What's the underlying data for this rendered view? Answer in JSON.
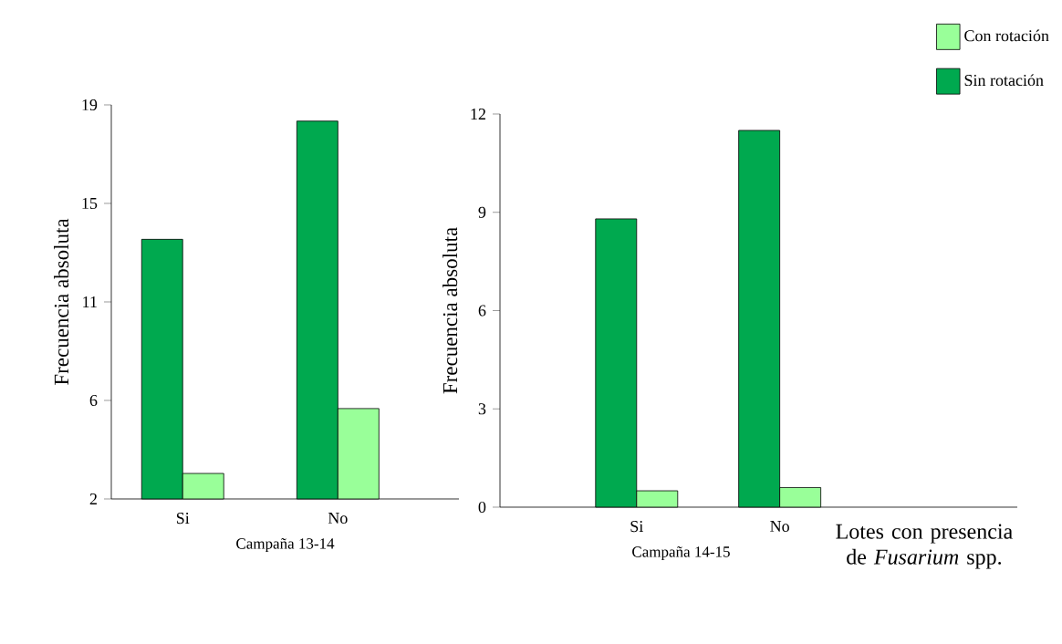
{
  "chart_data": [
    {
      "type": "bar",
      "xlabel": "Campaña 13-14",
      "ylabel": "Frecuencia absoluta",
      "categories": [
        "Si",
        "No"
      ],
      "ylim": [
        2,
        19
      ],
      "yticks": [
        2,
        {
          "value": 6.25,
          "label": "6"
        },
        {
          "value": 10.5,
          "label": "11"
        },
        {
          "value": 14.75,
          "label": "15"
        },
        19
      ],
      "series": [
        {
          "color": "#00a94f",
          "values": [
            13.2,
            18.3
          ]
        },
        {
          "color": "#99ff99",
          "values": [
            3.1,
            5.9
          ]
        }
      ]
    },
    {
      "type": "bar",
      "xlabel": "Campaña 14-15",
      "ylabel": "Frecuencia absoluta",
      "categories": [
        "Si",
        "No"
      ],
      "ylim": [
        0,
        12
      ],
      "yticks": [
        0,
        3,
        6,
        9,
        12
      ],
      "legend": "top right",
      "annotations": [
        "Lotes con presencia de *Fusarium* spp."
      ],
      "series": [
        {
          "name": "Sin rotación",
          "color": "#00a94f",
          "values": [
            8.8,
            11.5
          ]
        },
        {
          "name": "Con rotación",
          "color": "#99ff99",
          "values": [
            0.5,
            0.6
          ]
        }
      ]
    }
  ]
}
